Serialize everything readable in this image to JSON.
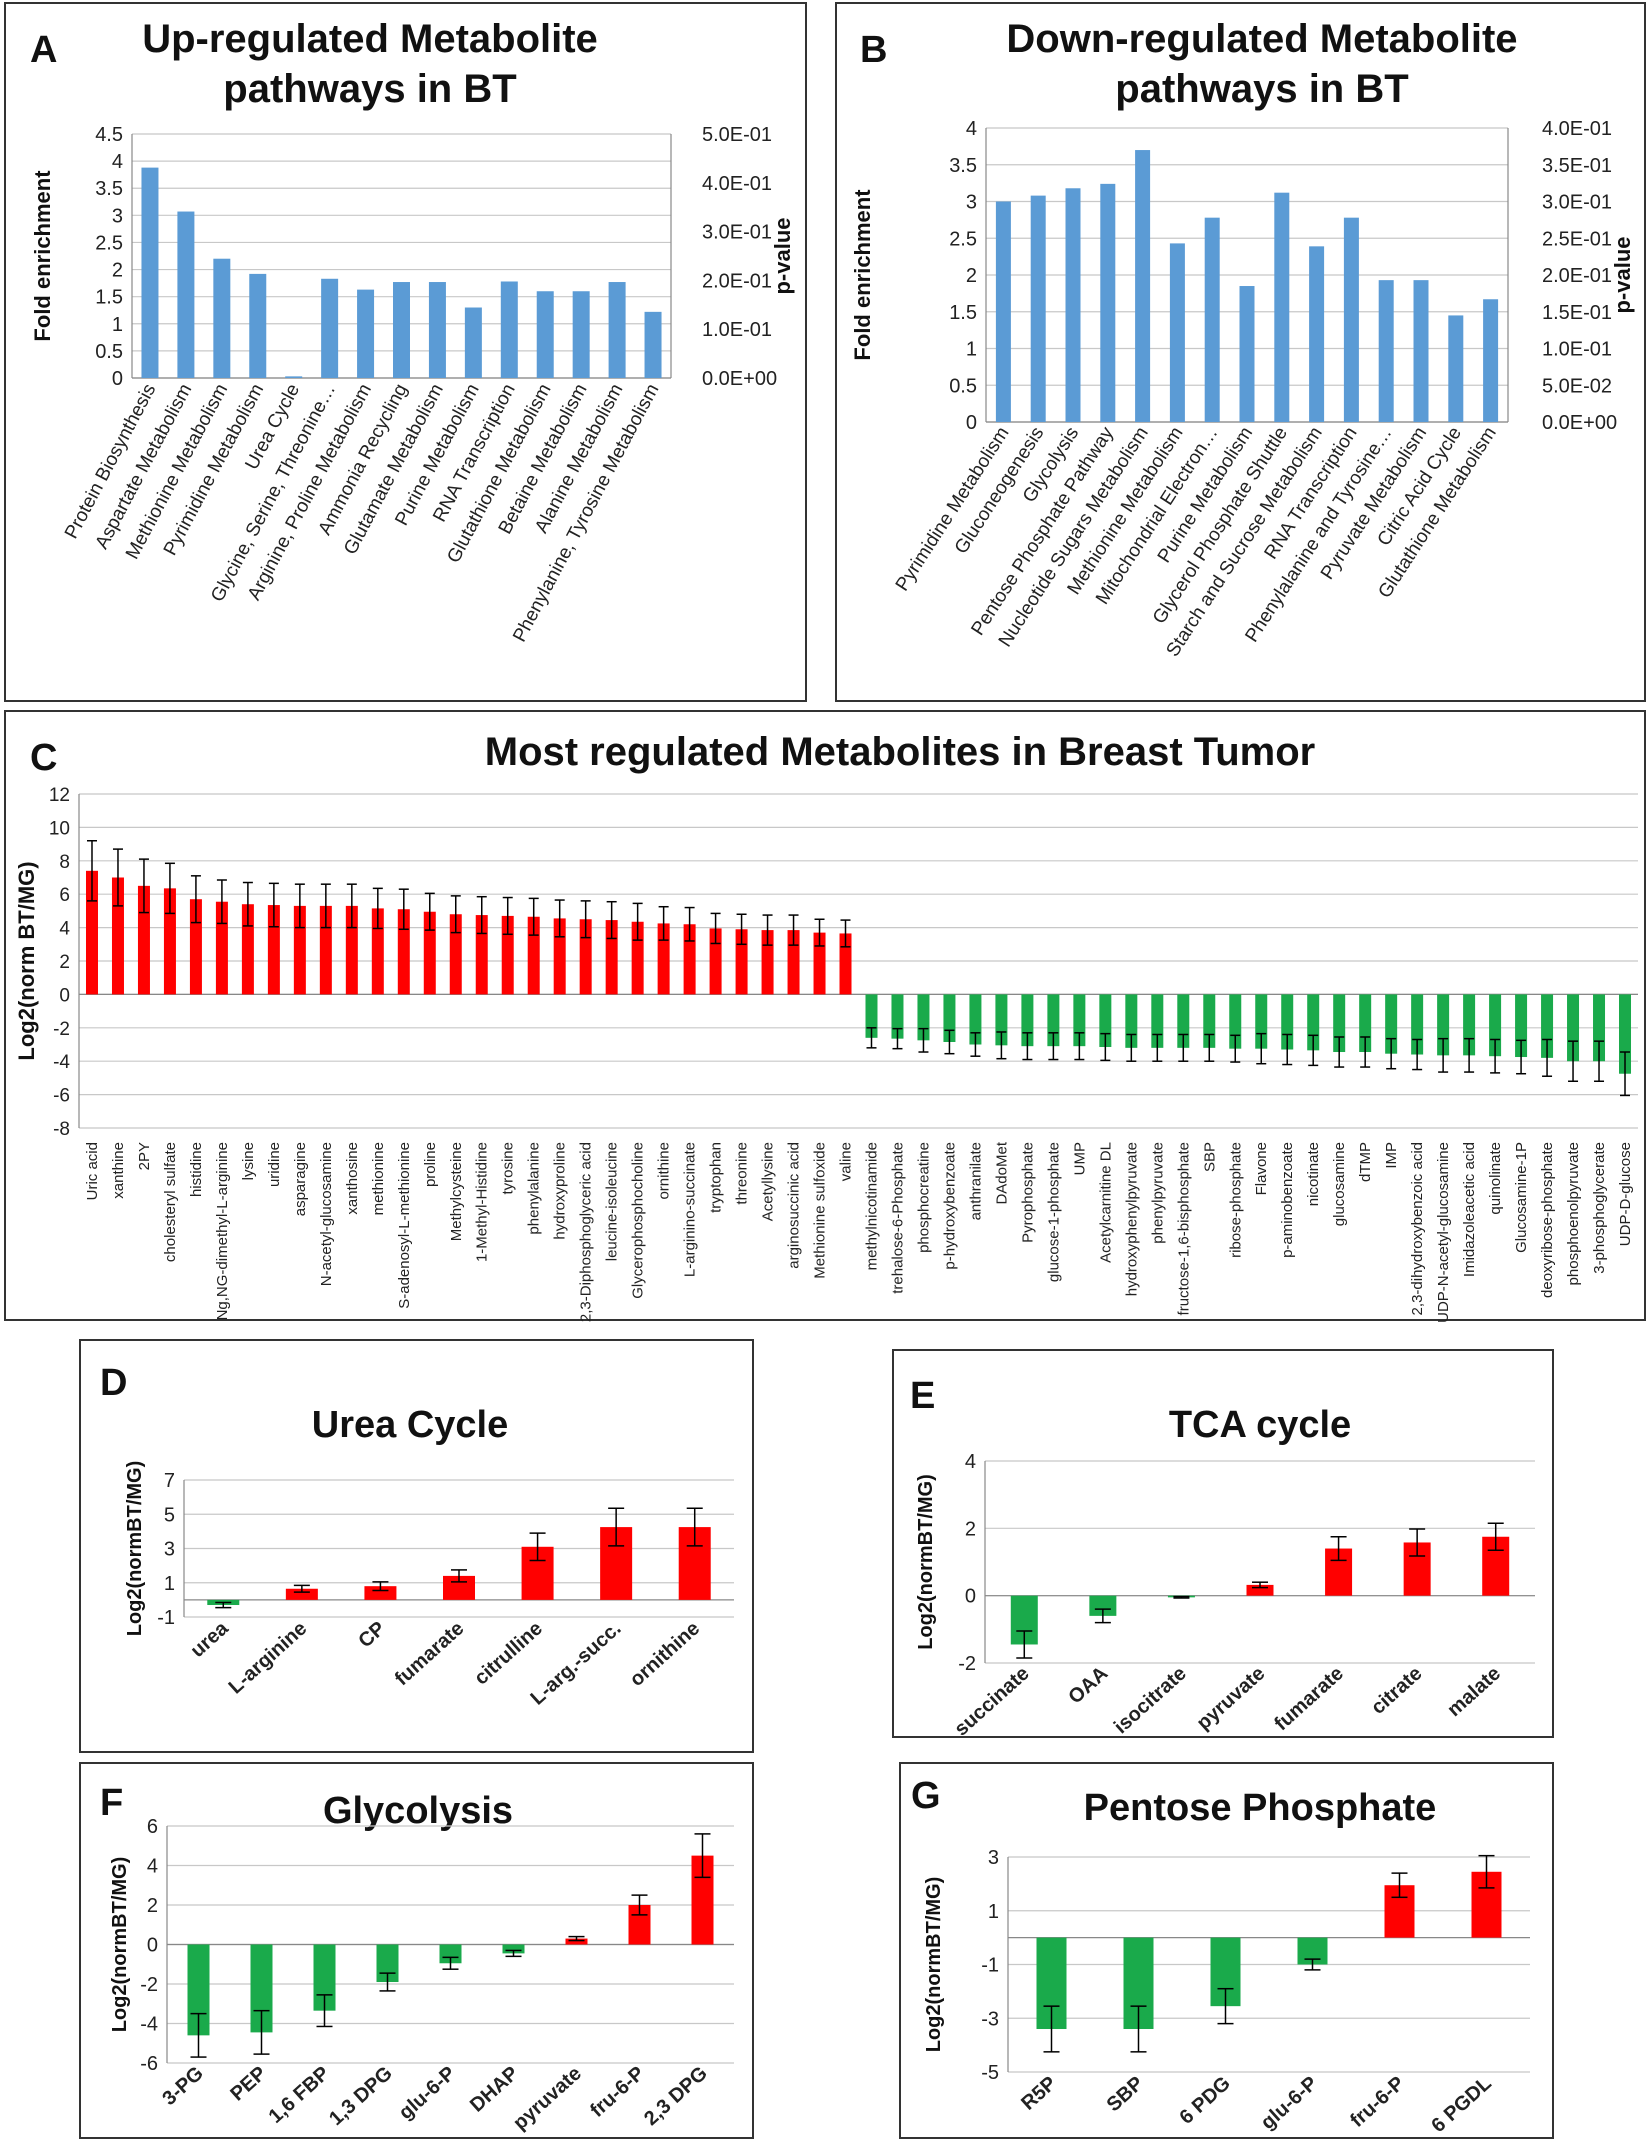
{
  "chart_data": [
    {
      "panel": "A",
      "type": "bar",
      "title": "Up-regulated Metabolite pathways in BT",
      "title_lines": [
        "Up-regulated Metabolite",
        "pathways in BT"
      ],
      "ylabel": "Fold enrichment",
      "y2label": "p-value",
      "ylim": [
        0,
        4.5
      ],
      "yticks": [
        "4.5",
        "4",
        "3.5",
        "3",
        "2.5",
        "2",
        "1.5",
        "1",
        "0.5",
        "0"
      ],
      "y2ticks": [
        "5.0E-01",
        "4.0E-01",
        "3.0E-01",
        "2.0E-01",
        "1.0E-01",
        "0.0E+00"
      ],
      "color": "#5b9bd5",
      "categories": [
        "Protein Biosynthesis",
        "Aspartate Metabolism",
        "Methionine Metabolism",
        "Pyrimidine Metabolism",
        "Urea Cycle",
        "Glycine, Serine, Threonine…",
        "Arginine, Proline Metabolism",
        "Ammonia Recycling",
        "Glutamate Metabolism",
        "Purine Metabolism",
        "RNA Transcription",
        "Glutathione Metabolism",
        "Betaine Metabolism",
        "Alanine Metabolism",
        "Phenylanine, Tyrosine Metabolism"
      ],
      "values": [
        3.88,
        3.07,
        2.2,
        1.92,
        0.03,
        1.83,
        1.63,
        1.77,
        1.77,
        1.3,
        1.78,
        1.6,
        1.6,
        1.77,
        1.22
      ]
    },
    {
      "panel": "B",
      "type": "bar",
      "title": "Down-regulated Metabolite pathways in BT",
      "title_lines": [
        "Down-regulated Metabolite",
        "pathways in BT"
      ],
      "ylabel": "Fold enrichment",
      "y2label": "p-value",
      "ylim": [
        0,
        4
      ],
      "yticks": [
        "4",
        "3.5",
        "3",
        "2.5",
        "2",
        "1.5",
        "1",
        "0.5",
        "0"
      ],
      "y2ticks": [
        "4.0E-01",
        "3.5E-01",
        "3.0E-01",
        "2.5E-01",
        "2.0E-01",
        "1.5E-01",
        "1.0E-01",
        "5.0E-02",
        "0.0E+00"
      ],
      "color": "#5b9bd5",
      "categories": [
        "Pyrimidine Metabolism",
        "Gluconeogenesis",
        "Glycolysis",
        "Pentose Phosphate Pathway",
        "Nucleotide Sugars Metabolism",
        "Methionine Metabolism",
        "Mitochondrial Electron…",
        "Purine Metabolism",
        "Glycerol Phosphate Shuttle",
        "Starch and Sucrose Metabolism",
        "RNA Transcription",
        "Phenylalanine and Tyrosine…",
        "Pyruvate Metabolism",
        "Citric Acid Cycle",
        "Glutathione Metabolism"
      ],
      "values": [
        3.0,
        3.08,
        3.18,
        3.24,
        3.7,
        2.43,
        2.78,
        1.85,
        3.12,
        2.39,
        2.78,
        1.93,
        1.93,
        1.45,
        1.67
      ]
    },
    {
      "panel": "C",
      "type": "bar",
      "title": "Most regulated Metabolites in Breast Tumor",
      "ylabel": "Log2(norm BT/MG)",
      "ylim": [
        -8,
        12
      ],
      "yticks": [
        "12",
        "10",
        "8",
        "6",
        "4",
        "2",
        "0",
        "-2",
        "-4",
        "-6",
        "-8"
      ],
      "pos_color": "#ff0000",
      "neg_color": "#1aaa4b",
      "categories": [
        "Uric acid",
        "xanthine",
        "2PY",
        "cholesteryl sulfate",
        "histidine",
        "Ng,NG-dimethyl-L-arginine",
        "lysine",
        "uridine",
        "asparagine",
        "N-acetyl-glucosamine",
        "xanthosine",
        "methionine",
        "S-adenosyl-L-methionine",
        "proline",
        "Methylcysteine",
        "1-Methyl-Histidine",
        "tyrosine",
        "phenylalanine",
        "hydroxyproline",
        "2,3-Diphosphoglyceric acid",
        "leucine-isoleucine",
        "Glycerophosphocholine",
        "ornithine",
        "L-arginino-succinate",
        "tryptophan",
        "threonine",
        "Acetyllysine",
        "arginosuccinic acid",
        "Methionine sulfoxide",
        "valine",
        "methylnicotinamide",
        "trehalose-6-Phosphate",
        "phosphocreatine",
        "p-hydroxybenzoate",
        "anthranilate",
        "DAdoMet",
        "Pyrophosphate",
        "glucose-1-phosphate",
        "UMP",
        "Acetylcarnitine DL",
        "hydroxyphenylpyruvate",
        "phenylpyruvate",
        "fructose-1,6-bisphosphate",
        "SBP",
        "ribose-phosphate",
        "Flavone",
        "p-aminobenzoate",
        "nicotinate",
        "glucosamine",
        "dTMP",
        "IMP",
        "2,3-dihydroxybenzoic acid",
        "UDP-N-acetyl-glucosamine",
        "Imidazoleacetic acid",
        "quinolinate",
        "Glucosamine-1P",
        "deoxyribose-phosphate",
        "phosphoenolpyruvate",
        "3-phosphoglycerate",
        "UDP-D-glucose"
      ],
      "values": [
        7.4,
        7.0,
        6.5,
        6.35,
        5.7,
        5.55,
        5.4,
        5.35,
        5.3,
        5.3,
        5.3,
        5.15,
        5.1,
        4.95,
        4.8,
        4.75,
        4.7,
        4.65,
        4.55,
        4.5,
        4.45,
        4.35,
        4.25,
        4.2,
        3.95,
        3.9,
        3.85,
        3.85,
        3.7,
        3.65,
        -2.6,
        -2.65,
        -2.75,
        -2.85,
        -3.0,
        -3.05,
        -3.1,
        -3.1,
        -3.1,
        -3.15,
        -3.2,
        -3.2,
        -3.2,
        -3.2,
        -3.25,
        -3.25,
        -3.3,
        -3.35,
        -3.45,
        -3.45,
        -3.55,
        -3.6,
        -3.65,
        -3.65,
        -3.7,
        -3.75,
        -3.8,
        -4.0,
        -4.0,
        -4.75
      ],
      "errors": [
        1.8,
        1.7,
        1.6,
        1.5,
        1.4,
        1.3,
        1.3,
        1.3,
        1.3,
        1.3,
        1.3,
        1.2,
        1.2,
        1.1,
        1.1,
        1.1,
        1.1,
        1.1,
        1.1,
        1.1,
        1.1,
        1.1,
        1.0,
        1.0,
        0.9,
        0.9,
        0.9,
        0.9,
        0.8,
        0.8,
        0.6,
        0.6,
        0.7,
        0.7,
        0.7,
        0.8,
        0.8,
        0.8,
        0.8,
        0.8,
        0.8,
        0.8,
        0.8,
        0.8,
        0.8,
        0.9,
        0.9,
        0.9,
        0.9,
        0.9,
        0.9,
        0.9,
        1.0,
        1.0,
        1.0,
        1.0,
        1.1,
        1.2,
        1.2,
        1.3
      ]
    },
    {
      "panel": "D",
      "type": "bar",
      "title": "Urea Cycle",
      "ylabel": "Log2(normBT/MG)",
      "ylim": [
        -1,
        7
      ],
      "yticks": [
        "7",
        "5",
        "3",
        "1",
        "-1"
      ],
      "pos_color": "#ff0000",
      "neg_color": "#1aaa4b",
      "categories": [
        "urea",
        "L-arginine",
        "CP",
        "fumarate",
        "citrulline",
        "L-arg.-succ.",
        "ornithine"
      ],
      "values": [
        -0.3,
        0.65,
        0.8,
        1.4,
        3.1,
        4.25,
        4.25
      ],
      "errors": [
        0.15,
        0.2,
        0.25,
        0.35,
        0.8,
        1.1,
        1.1
      ]
    },
    {
      "panel": "E",
      "type": "bar",
      "title": "TCA cycle",
      "ylabel": "Log2(normBT/MG)",
      "ylim": [
        -2,
        4
      ],
      "yticks": [
        "4",
        "2",
        "0",
        "-2"
      ],
      "pos_color": "#ff0000",
      "neg_color": "#1aaa4b",
      "categories": [
        "succinate",
        "OAA",
        "isocitrate",
        "pyruvate",
        "fumarate",
        "citrate",
        "malate"
      ],
      "values": [
        -1.45,
        -0.6,
        -0.05,
        0.32,
        1.4,
        1.58,
        1.75
      ],
      "errors": [
        0.4,
        0.2,
        0.02,
        0.08,
        0.35,
        0.4,
        0.4
      ]
    },
    {
      "panel": "F",
      "type": "bar",
      "title": "Glycolysis",
      "ylabel": "Log2(normBT/MG)",
      "ylim": [
        -6,
        6
      ],
      "yticks": [
        "6",
        "4",
        "2",
        "0",
        "-2",
        "-4",
        "-6"
      ],
      "pos_color": "#ff0000",
      "neg_color": "#1aaa4b",
      "categories": [
        "3-PG",
        "PEP",
        "1,6 FBP",
        "1,3 DPG",
        "glu-6-P",
        "DHAP",
        "pyruvate",
        "fru-6-P",
        "2,3 DPG"
      ],
      "values": [
        -4.6,
        -4.45,
        -3.35,
        -1.9,
        -0.95,
        -0.45,
        0.3,
        2.0,
        4.5
      ],
      "errors": [
        1.1,
        1.1,
        0.8,
        0.45,
        0.3,
        0.15,
        0.1,
        0.5,
        1.1
      ]
    },
    {
      "panel": "G",
      "type": "bar",
      "title": "Pentose Phosphate",
      "ylabel": "Log2(normBT/MG)",
      "ylim": [
        -5,
        3
      ],
      "yticks": [
        "3",
        "1",
        "-1",
        "-3",
        "-5"
      ],
      "pos_color": "#ff0000",
      "neg_color": "#1aaa4b",
      "categories": [
        "R5P",
        "SBP",
        "6 PDG",
        "glu-6-P",
        "fru-6-P",
        "6 PGDL"
      ],
      "values": [
        -3.4,
        -3.4,
        -2.55,
        -1.0,
        1.95,
        2.45
      ],
      "errors": [
        0.85,
        0.85,
        0.65,
        0.2,
        0.45,
        0.6
      ]
    }
  ]
}
